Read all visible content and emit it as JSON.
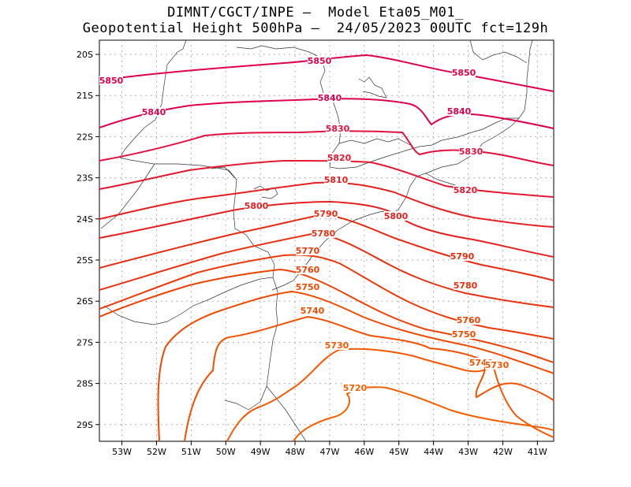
{
  "title_line1": "DIMNT/CGCT/INPE –  Model Eta05_M01_",
  "title_line2": "Geopotential Height 500hPa –  24/05/2023 00UTC fct=129h",
  "lat_ticks": [
    "20S",
    "21S",
    "22S",
    "23S",
    "24S",
    "25S",
    "26S",
    "27S",
    "28S",
    "29S"
  ],
  "lon_ticks": [
    "53W",
    "52W",
    "51W",
    "50W",
    "49W",
    "48W",
    "47W",
    "46W",
    "45W",
    "44W",
    "43W",
    "42W",
    "41W"
  ],
  "contours": [
    {
      "value": 5850,
      "label": "5850",
      "color": "#e0004a"
    },
    {
      "value": 5840,
      "label": "5840",
      "color": "#e0004a"
    },
    {
      "value": 5830,
      "label": "5830",
      "color": "#e31040"
    },
    {
      "value": 5820,
      "label": "5820",
      "color": "#e41830"
    },
    {
      "value": 5810,
      "label": "5810",
      "color": "#e62020"
    },
    {
      "value": 5800,
      "label": "5800",
      "color": "#e62020"
    },
    {
      "value": 5790,
      "label": "5790",
      "color": "#e82a10"
    },
    {
      "value": 5780,
      "label": "5780",
      "color": "#ea3010"
    },
    {
      "value": 5770,
      "label": "5770",
      "color": "#ec3a0a"
    },
    {
      "value": 5760,
      "label": "5760",
      "color": "#ee4205"
    },
    {
      "value": 5750,
      "label": "5750",
      "color": "#f04a00"
    },
    {
      "value": 5740,
      "label": "5740",
      "color": "#f25000"
    },
    {
      "value": 5730,
      "label": "5730",
      "color": "#f45800"
    },
    {
      "value": 5720,
      "label": "5720",
      "color": "#f46000"
    }
  ]
}
